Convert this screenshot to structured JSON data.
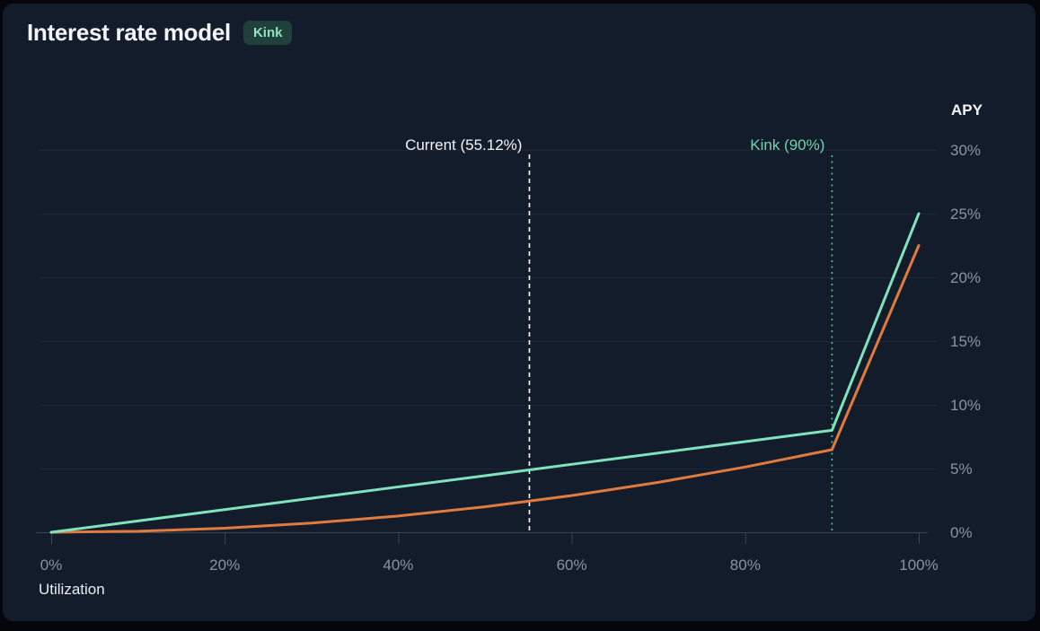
{
  "header": {
    "title": "Interest rate model",
    "badge": "Kink"
  },
  "colors": {
    "page_bg": "#04060b",
    "card_bg": "#131c2b",
    "grid": "#1d2737",
    "axis": "#3e4655",
    "tick_label": "#8a93a4",
    "title_text": "#f2f4f8",
    "current_marker": "#ffffff",
    "kink_marker": "#5fc1a0",
    "kink_label": "#6fd3b0",
    "teal_series": "#7fe3bd",
    "orange_series": "#e17a3e"
  },
  "chart_data": {
    "type": "line",
    "title": "Interest rate model",
    "xlabel": "Utilization",
    "ylabel": "APY",
    "xlim": [
      0,
      100
    ],
    "ylim": [
      0,
      30
    ],
    "grid": "horizontal",
    "legend": "none",
    "x_ticks": [
      {
        "value": 0,
        "label": "0%"
      },
      {
        "value": 20,
        "label": "20%"
      },
      {
        "value": 40,
        "label": "40%"
      },
      {
        "value": 60,
        "label": "60%"
      },
      {
        "value": 80,
        "label": "80%"
      },
      {
        "value": 100,
        "label": "100%"
      }
    ],
    "y_ticks": [
      {
        "value": 0,
        "label": "0%"
      },
      {
        "value": 5,
        "label": "5%"
      },
      {
        "value": 10,
        "label": "10%"
      },
      {
        "value": 15,
        "label": "15%"
      },
      {
        "value": 20,
        "label": "20%"
      },
      {
        "value": 25,
        "label": "25%"
      },
      {
        "value": 30,
        "label": "30%"
      }
    ],
    "series": [
      {
        "name": "teal",
        "color": "#7fe3bd",
        "x": [
          0,
          10,
          20,
          30,
          40,
          50,
          60,
          70,
          80,
          90,
          100
        ],
        "y": [
          0,
          0.89,
          1.78,
          2.67,
          3.56,
          4.44,
          5.33,
          6.22,
          7.11,
          8.0,
          25.0
        ]
      },
      {
        "name": "orange",
        "color": "#e17a3e",
        "x": [
          0,
          10,
          20,
          30,
          40,
          50,
          60,
          70,
          80,
          90,
          100
        ],
        "y": [
          0,
          0.08,
          0.32,
          0.72,
          1.28,
          2.0,
          2.88,
          3.92,
          5.12,
          6.48,
          22.5
        ]
      }
    ],
    "markers": [
      {
        "label": "Current (55.12%)",
        "x": 55.12,
        "style": "dashed",
        "color": "#ffffff"
      },
      {
        "label": "Kink (90%)",
        "x": 90,
        "style": "dotted",
        "color": "#5fc1a0"
      }
    ]
  }
}
